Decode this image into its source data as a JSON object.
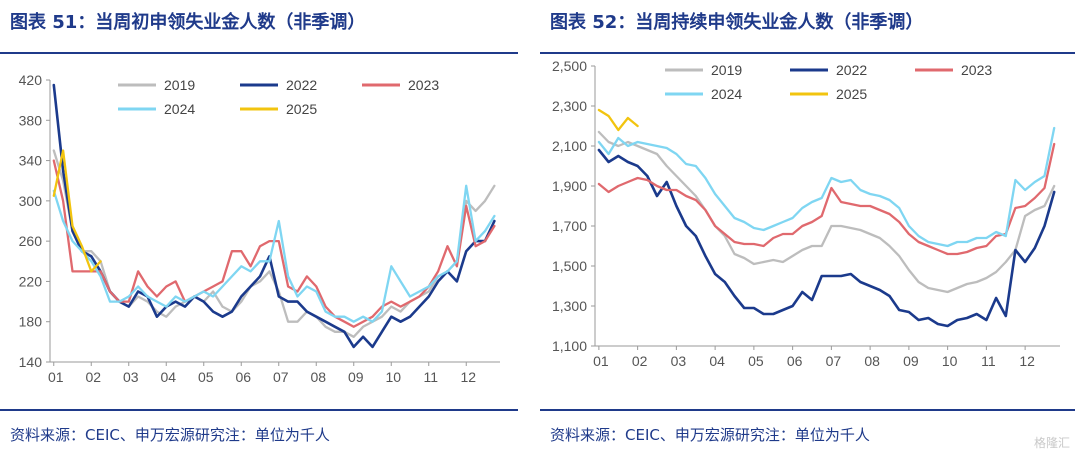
{
  "left": {
    "title": "图表 51：当周初申领失业金人数（非季调）",
    "source": "资料来源：CEIC、申万宏源研究注：单位为千人"
  },
  "right": {
    "title": "图表 52：当周持续申领失业金人数（非季调）",
    "source": "资料来源：CEIC、申万宏源研究注：单位为千人"
  },
  "watermark": "格隆汇",
  "colors": {
    "2019": "#bdbdbd",
    "2022": "#1b3a8c",
    "2023": "#e0696e",
    "2024": "#7fd6f2",
    "2025": "#f2c40f"
  },
  "chart_data": [
    {
      "type": "line",
      "ylim": [
        140,
        420
      ],
      "yticks": [
        "140",
        "180",
        "220",
        "260",
        "300",
        "340",
        "380",
        "420"
      ],
      "xticks": [
        "01",
        "02",
        "03",
        "04",
        "05",
        "06",
        "07",
        "08",
        "09",
        "10",
        "11",
        "12"
      ],
      "legend": [
        "2019",
        "2022",
        "2023",
        "2024",
        "2025"
      ],
      "series": [
        {
          "name": "2019",
          "x": [
            1,
            1.25,
            1.5,
            1.75,
            2,
            2.25,
            2.5,
            2.75,
            3,
            3.25,
            3.5,
            3.75,
            4,
            4.25,
            4.5,
            4.75,
            5,
            5.25,
            5.5,
            5.75,
            6,
            6.25,
            6.5,
            6.75,
            7,
            7.25,
            7.5,
            7.75,
            8,
            8.25,
            8.5,
            8.75,
            9,
            9.25,
            9.5,
            9.75,
            10,
            10.25,
            10.5,
            10.75,
            11,
            11.25,
            11.5,
            11.75,
            12,
            12.25,
            12.5,
            12.75
          ],
          "values": [
            350,
            320,
            270,
            250,
            250,
            240,
            210,
            200,
            195,
            205,
            200,
            190,
            185,
            195,
            200,
            205,
            200,
            210,
            195,
            190,
            200,
            215,
            220,
            230,
            210,
            180,
            180,
            190,
            185,
            175,
            170,
            170,
            165,
            175,
            180,
            185,
            195,
            190,
            200,
            205,
            210,
            225,
            230,
            240,
            300,
            290,
            300,
            315
          ]
        },
        {
          "name": "2022",
          "x": [
            1,
            1.25,
            1.5,
            1.75,
            2,
            2.25,
            2.5,
            2.75,
            3,
            3.25,
            3.5,
            3.75,
            4,
            4.25,
            4.5,
            4.75,
            5,
            5.25,
            5.5,
            5.75,
            6,
            6.25,
            6.5,
            6.75,
            7,
            7.25,
            7.5,
            7.75,
            8,
            8.25,
            8.5,
            8.75,
            9,
            9.25,
            9.5,
            9.75,
            10,
            10.25,
            10.5,
            10.75,
            11,
            11.25,
            11.5,
            11.75,
            12,
            12.25,
            12.5,
            12.75
          ],
          "values": [
            415,
            330,
            270,
            250,
            245,
            230,
            210,
            200,
            195,
            210,
            205,
            185,
            195,
            200,
            195,
            205,
            200,
            190,
            185,
            190,
            205,
            215,
            225,
            245,
            205,
            200,
            200,
            190,
            185,
            180,
            175,
            170,
            155,
            165,
            155,
            170,
            185,
            180,
            185,
            195,
            205,
            220,
            230,
            220,
            250,
            260,
            260,
            280
          ]
        },
        {
          "name": "2023",
          "x": [
            1,
            1.25,
            1.5,
            1.75,
            2,
            2.25,
            2.5,
            2.75,
            3,
            3.25,
            3.5,
            3.75,
            4,
            4.25,
            4.5,
            4.75,
            5,
            5.25,
            5.5,
            5.75,
            6,
            6.25,
            6.5,
            6.75,
            7,
            7.25,
            7.5,
            7.75,
            8,
            8.25,
            8.5,
            8.75,
            9,
            9.25,
            9.5,
            9.75,
            10,
            10.25,
            10.5,
            10.75,
            11,
            11.25,
            11.5,
            11.75,
            12,
            12.25,
            12.5,
            12.75
          ],
          "values": [
            340,
            300,
            230,
            230,
            230,
            230,
            210,
            200,
            200,
            230,
            215,
            205,
            215,
            220,
            200,
            205,
            210,
            215,
            220,
            250,
            250,
            235,
            255,
            260,
            260,
            215,
            210,
            225,
            215,
            195,
            185,
            180,
            175,
            180,
            185,
            195,
            200,
            195,
            200,
            205,
            215,
            230,
            255,
            235,
            295,
            255,
            260,
            275
          ]
        },
        {
          "name": "2024",
          "x": [
            1,
            1.25,
            1.5,
            1.75,
            2,
            2.25,
            2.5,
            2.75,
            3,
            3.25,
            3.5,
            3.75,
            4,
            4.25,
            4.5,
            4.75,
            5,
            5.25,
            5.5,
            5.75,
            6,
            6.25,
            6.5,
            6.75,
            7,
            7.25,
            7.5,
            7.75,
            8,
            8.25,
            8.5,
            8.75,
            9,
            9.25,
            9.5,
            9.75,
            10,
            10.25,
            10.5,
            10.75,
            11,
            11.25,
            11.5,
            11.75,
            12,
            12.25,
            12.5,
            12.75
          ],
          "values": [
            310,
            280,
            260,
            250,
            240,
            225,
            200,
            200,
            205,
            215,
            205,
            200,
            195,
            205,
            200,
            205,
            210,
            205,
            215,
            225,
            235,
            230,
            240,
            240,
            280,
            225,
            205,
            215,
            210,
            190,
            185,
            185,
            180,
            185,
            180,
            190,
            235,
            220,
            205,
            210,
            215,
            225,
            230,
            240,
            315,
            260,
            270,
            285
          ]
        },
        {
          "name": "2025",
          "x": [
            1,
            1.25,
            1.5,
            1.75,
            2,
            2.25
          ],
          "values": [
            305,
            350,
            275,
            255,
            230,
            240
          ]
        }
      ]
    },
    {
      "type": "line",
      "ylim": [
        1100,
        2500
      ],
      "yticks": [
        "1,100",
        "1,300",
        "1,500",
        "1,700",
        "1,900",
        "2,100",
        "2,300",
        "2,500"
      ],
      "xticks": [
        "01",
        "02",
        "03",
        "04",
        "05",
        "06",
        "07",
        "08",
        "09",
        "10",
        "11",
        "12"
      ],
      "legend": [
        "2019",
        "2022",
        "2023",
        "2024",
        "2025"
      ],
      "series": [
        {
          "name": "2019",
          "x": [
            1,
            1.25,
            1.5,
            1.75,
            2,
            2.25,
            2.5,
            2.75,
            3,
            3.25,
            3.5,
            3.75,
            4,
            4.25,
            4.5,
            4.75,
            5,
            5.25,
            5.5,
            5.75,
            6,
            6.25,
            6.5,
            6.75,
            7,
            7.25,
            7.5,
            7.75,
            8,
            8.25,
            8.5,
            8.75,
            9,
            9.25,
            9.5,
            9.75,
            10,
            10.25,
            10.5,
            10.75,
            11,
            11.25,
            11.5,
            11.75,
            12,
            12.25,
            12.5,
            12.75
          ],
          "values": [
            2170,
            2120,
            2100,
            2120,
            2100,
            2080,
            2060,
            2000,
            1950,
            1900,
            1850,
            1780,
            1700,
            1650,
            1560,
            1540,
            1510,
            1520,
            1530,
            1520,
            1550,
            1580,
            1600,
            1600,
            1700,
            1700,
            1690,
            1680,
            1660,
            1640,
            1600,
            1550,
            1480,
            1420,
            1390,
            1380,
            1370,
            1390,
            1410,
            1420,
            1440,
            1470,
            1520,
            1580,
            1750,
            1780,
            1800,
            1900
          ]
        },
        {
          "name": "2022",
          "x": [
            1,
            1.25,
            1.5,
            1.75,
            2,
            2.25,
            2.5,
            2.75,
            3,
            3.25,
            3.5,
            3.75,
            4,
            4.25,
            4.5,
            4.75,
            5,
            5.25,
            5.5,
            5.75,
            6,
            6.25,
            6.5,
            6.75,
            7,
            7.25,
            7.5,
            7.75,
            8,
            8.25,
            8.5,
            8.75,
            9,
            9.25,
            9.5,
            9.75,
            10,
            10.25,
            10.5,
            10.75,
            11,
            11.25,
            11.5,
            11.75,
            12,
            12.25,
            12.5,
            12.75
          ],
          "values": [
            2080,
            2020,
            2050,
            2020,
            2000,
            1950,
            1850,
            1920,
            1800,
            1700,
            1650,
            1550,
            1460,
            1420,
            1350,
            1290,
            1290,
            1260,
            1260,
            1280,
            1300,
            1370,
            1330,
            1450,
            1450,
            1450,
            1460,
            1420,
            1400,
            1380,
            1350,
            1280,
            1270,
            1230,
            1240,
            1210,
            1200,
            1230,
            1240,
            1260,
            1230,
            1340,
            1250,
            1580,
            1520,
            1590,
            1700,
            1870
          ]
        },
        {
          "name": "2023",
          "x": [
            1,
            1.25,
            1.5,
            1.75,
            2,
            2.25,
            2.5,
            2.75,
            3,
            3.25,
            3.5,
            3.75,
            4,
            4.25,
            4.5,
            4.75,
            5,
            5.25,
            5.5,
            5.75,
            6,
            6.25,
            6.5,
            6.75,
            7,
            7.25,
            7.5,
            7.75,
            8,
            8.25,
            8.5,
            8.75,
            9,
            9.25,
            9.5,
            9.75,
            10,
            10.25,
            10.5,
            10.75,
            11,
            11.25,
            11.5,
            11.75,
            12,
            12.25,
            12.5,
            12.75
          ],
          "values": [
            1910,
            1870,
            1900,
            1920,
            1940,
            1930,
            1900,
            1880,
            1880,
            1850,
            1830,
            1780,
            1700,
            1660,
            1620,
            1610,
            1610,
            1600,
            1640,
            1660,
            1660,
            1700,
            1720,
            1750,
            1890,
            1820,
            1810,
            1800,
            1800,
            1780,
            1760,
            1720,
            1660,
            1620,
            1600,
            1580,
            1560,
            1560,
            1570,
            1590,
            1600,
            1650,
            1660,
            1790,
            1800,
            1840,
            1890,
            2110
          ]
        },
        {
          "name": "2024",
          "x": [
            1,
            1.25,
            1.5,
            1.75,
            2,
            2.25,
            2.5,
            2.75,
            3,
            3.25,
            3.5,
            3.75,
            4,
            4.25,
            4.5,
            4.75,
            5,
            5.25,
            5.5,
            5.75,
            6,
            6.25,
            6.5,
            6.75,
            7,
            7.25,
            7.5,
            7.75,
            8,
            8.25,
            8.5,
            8.75,
            9,
            9.25,
            9.5,
            9.75,
            10,
            10.25,
            10.5,
            10.75,
            11,
            11.25,
            11.5,
            11.75,
            12,
            12.25,
            12.5,
            12.75
          ],
          "values": [
            2120,
            2060,
            2140,
            2100,
            2120,
            2110,
            2100,
            2090,
            2060,
            2010,
            2000,
            1940,
            1860,
            1800,
            1740,
            1720,
            1690,
            1680,
            1700,
            1720,
            1740,
            1790,
            1820,
            1840,
            1940,
            1920,
            1930,
            1880,
            1860,
            1850,
            1830,
            1790,
            1700,
            1650,
            1620,
            1610,
            1600,
            1620,
            1620,
            1640,
            1640,
            1670,
            1650,
            1930,
            1880,
            1920,
            1950,
            2190
          ]
        },
        {
          "name": "2025",
          "x": [
            1,
            1.25,
            1.5,
            1.75,
            2
          ],
          "values": [
            2280,
            2250,
            2180,
            2240,
            2200
          ]
        }
      ]
    }
  ]
}
